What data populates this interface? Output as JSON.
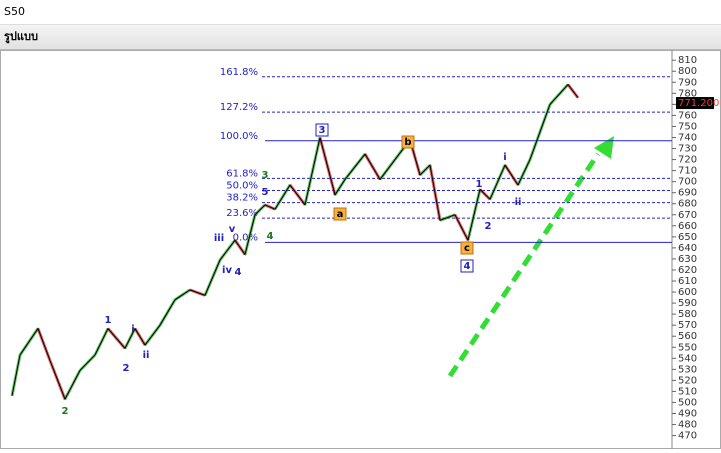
{
  "header": {
    "symbol": "S50",
    "tab": "รูปแบบ"
  },
  "chart_data": {
    "type": "line",
    "x": [
      12,
      20,
      38,
      50,
      65,
      80,
      95,
      108,
      125,
      135,
      145,
      160,
      175,
      190,
      205,
      220,
      235,
      245,
      255,
      265,
      275,
      290,
      305,
      320,
      335,
      345,
      365,
      380,
      395,
      410,
      420,
      430,
      440,
      455,
      468,
      480,
      490,
      505,
      518,
      530,
      550,
      568,
      578
    ],
    "series": [
      {
        "color": "#000000",
        "values": [
          506,
          543,
          567,
          538,
          503,
          529,
          543,
          567,
          549,
          567,
          552,
          570,
          593,
          602,
          597,
          629,
          647,
          634,
          670,
          679,
          675,
          697,
          679,
          740,
          688,
          702,
          725,
          702,
          720,
          738,
          706,
          715,
          665,
          670,
          647,
          693,
          684,
          715,
          697,
          720,
          770,
          788,
          776
        ]
      }
    ],
    "xlim": [
      12,
      672
    ],
    "ylim": [
      466,
      812
    ],
    "yticks": [
      470,
      480,
      490,
      500,
      510,
      520,
      530,
      540,
      550,
      560,
      570,
      580,
      590,
      600,
      610,
      620,
      630,
      640,
      650,
      660,
      670,
      680,
      690,
      700,
      710,
      720,
      730,
      740,
      750,
      760,
      770,
      780,
      790,
      800,
      810
    ],
    "last_price": {
      "value": 771.2,
      "label": "771.200"
    },
    "fib_levels": [
      {
        "label": "161.8%",
        "value": 795,
        "solid": false
      },
      {
        "label": "127.2%",
        "value": 763,
        "solid": false
      },
      {
        "label": "100.0%",
        "value": 737,
        "solid": true
      },
      {
        "label": "61.8%",
        "value": 703,
        "solid": false
      },
      {
        "label": "50.0%",
        "value": 692,
        "solid": false
      },
      {
        "label": "38.2%",
        "value": 681,
        "solid": false
      },
      {
        "label": "23.6%",
        "value": 667,
        "solid": false
      },
      {
        "label": "0.0%",
        "value": 645,
        "solid": true
      }
    ],
    "annotations": [
      {
        "text": "2",
        "color": "#1a7a1a",
        "box": false
      },
      {
        "text": "1",
        "color": "#2222bb",
        "box": false
      },
      {
        "text": "2",
        "color": "#2222bb",
        "box": false
      },
      {
        "text": "i",
        "color": "#2222bb",
        "box": false
      },
      {
        "text": "ii",
        "color": "#2222bb",
        "box": false
      },
      {
        "text": "iii",
        "color": "#2222bb",
        "box": false
      },
      {
        "text": "iv",
        "color": "#2222bb",
        "box": false
      },
      {
        "text": "v",
        "color": "#2222bb",
        "box": false
      },
      {
        "text": "4",
        "color": "#2222bb",
        "box": false
      },
      {
        "text": "3",
        "color": "#1a7a1a",
        "box": false
      },
      {
        "text": "5",
        "color": "#2222bb",
        "box": false
      },
      {
        "text": "4",
        "color": "#1a7a1a",
        "box": false
      },
      {
        "text": "3",
        "color": "#2222bb",
        "box": true
      },
      {
        "text": "a",
        "color": "#f0a020",
        "box": true
      },
      {
        "text": "b",
        "color": "#f0a020",
        "box": true
      },
      {
        "text": "c",
        "color": "#f0a020",
        "box": true
      },
      {
        "text": "4",
        "color": "#2222bb",
        "box": true
      },
      {
        "text": "1",
        "color": "#2222bb",
        "box": false
      },
      {
        "text": "2",
        "color": "#2222bb",
        "box": false
      },
      {
        "text": "i",
        "color": "#2222bb",
        "box": false
      },
      {
        "text": "ii",
        "color": "#2222bb",
        "box": false
      }
    ]
  }
}
